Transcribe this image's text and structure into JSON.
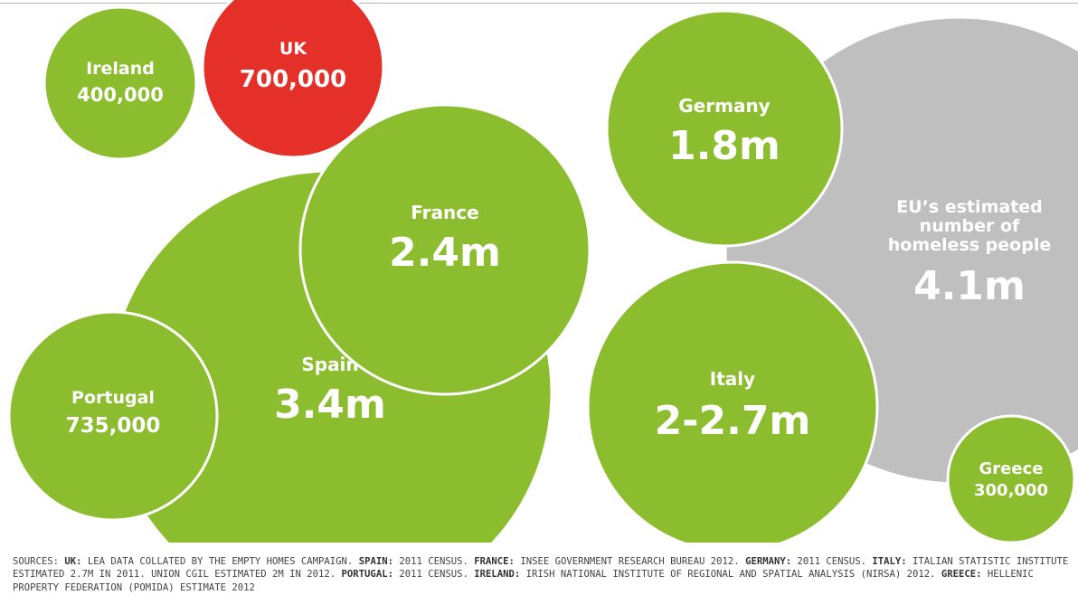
{
  "chart_data": {
    "type": "bubble",
    "bubbles": [
      {
        "name": "Ireland",
        "value_label": "400,000",
        "value": 400000
      },
      {
        "name": "UK",
        "value_label": "700,000",
        "value": 700000,
        "highlight": true
      },
      {
        "name": "Germany",
        "value_label": "1.8m",
        "value": 1800000
      },
      {
        "name": "EU’s estimated number of homeless people",
        "value_label": "4.1m",
        "value": 4100000,
        "kind": "reference"
      },
      {
        "name": "France",
        "value_label": "2.4m",
        "value": 2400000
      },
      {
        "name": "Spain",
        "value_label": "3.4m",
        "value": 3400000
      },
      {
        "name": "Portugal",
        "value_label": "735,000",
        "value": 735000
      },
      {
        "name": "Italy",
        "value_label": "2-2.7m",
        "value": 2700000
      },
      {
        "name": "Greece",
        "value_label": "300,000",
        "value": 300000
      }
    ],
    "colors": {
      "green": "#8cbd2f",
      "red": "#e5302a",
      "grey": "#bfbfbf",
      "border": "#ffffff"
    }
  },
  "sources": [
    {
      "label": "",
      "text": "SOURCES: "
    },
    {
      "label": "UK:",
      "text": " LEA DATA COLLATED BY THE EMPTY HOMES CAMPAIGN. "
    },
    {
      "label": "SPAIN:",
      "text": " 2011 CENSUS. "
    },
    {
      "label": "FRANCE:",
      "text": " INSEE GOVERNMENT RESEARCH BUREAU 2012. "
    },
    {
      "label": "GERMANY:",
      "text": " 2011 CENSUS. "
    },
    {
      "label": "ITALY:",
      "text": " ITALIAN STATISTIC INSTITUTE ESTIMATED 2.7M IN 2011. UNION CGIL ESTIMATED 2M IN 2012. "
    },
    {
      "label": "PORTUGAL:",
      "text": " 2011 CENSUS. "
    },
    {
      "label": "IRELAND:",
      "text": " IRISH NATIONAL INSTITUTE OF REGIONAL AND SPATIAL ANALYSIS (NIRSA) 2012. "
    },
    {
      "label": "GREECE:",
      "text": " HELLENIC PROPERTY FEDERATION (POMIDA) ESTIMATE 2012"
    }
  ]
}
